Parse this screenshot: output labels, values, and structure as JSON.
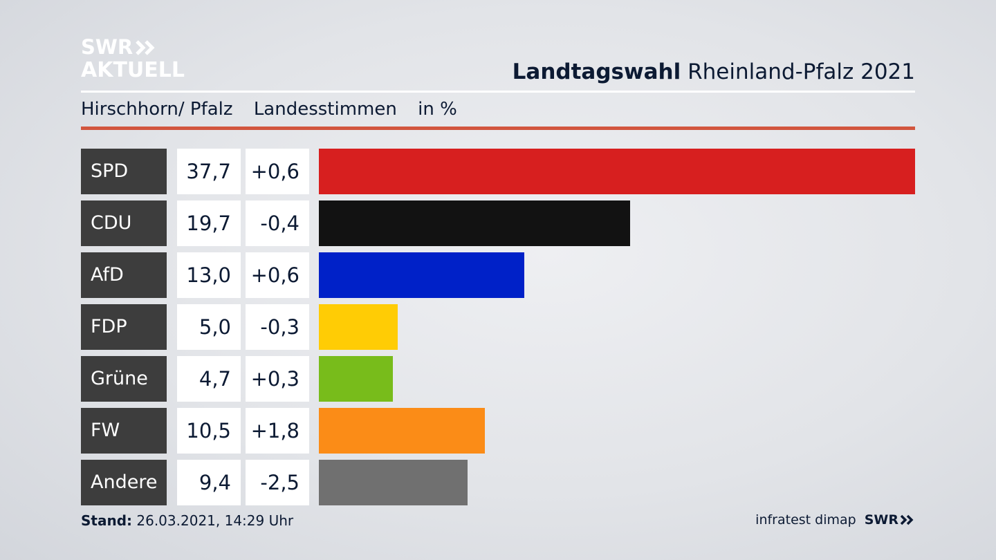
{
  "brand": {
    "line1": "SWR",
    "line2": "AKTUELL",
    "chevron_icon": "double-chevron-right-icon",
    "color": "#ffffff"
  },
  "header": {
    "title_bold": "Landtagswahl",
    "title_rest": "Rheinland-Pfalz 2021"
  },
  "subheader": {
    "location": "Hirschhorn/ Pfalz",
    "vote_type": "Landesstimmen",
    "unit": "in %"
  },
  "chart_data": {
    "type": "bar",
    "orientation": "horizontal",
    "unit": "%",
    "categories": [
      "SPD",
      "CDU",
      "AfD",
      "FDP",
      "Grüne",
      "FW",
      "Andere"
    ],
    "values": [
      37.7,
      19.7,
      13.0,
      5.0,
      4.7,
      10.5,
      9.4
    ],
    "value_labels": [
      "37,7",
      "19,7",
      "13,0",
      "5,0",
      "4,7",
      "10,5",
      "9,4"
    ],
    "change_labels": [
      "+0,6",
      "-0,4",
      "+0,6",
      "-0,3",
      "+0,3",
      "+1,8",
      "-2,5"
    ],
    "changes": [
      0.6,
      -0.4,
      0.6,
      -0.3,
      0.3,
      1.8,
      -2.5
    ],
    "colors": [
      "#d71f1f",
      "#121212",
      "#0021c8",
      "#ffcc05",
      "#78bc1b",
      "#fb8c17",
      "#707070"
    ],
    "xlim": [
      0,
      37.7
    ],
    "grid": false,
    "legend": "none"
  },
  "footer": {
    "stand_label": "Stand:",
    "stand_value": "26.03.2021, 14:29 Uhr",
    "source": "infratest dimap",
    "broadcaster": "SWR"
  }
}
